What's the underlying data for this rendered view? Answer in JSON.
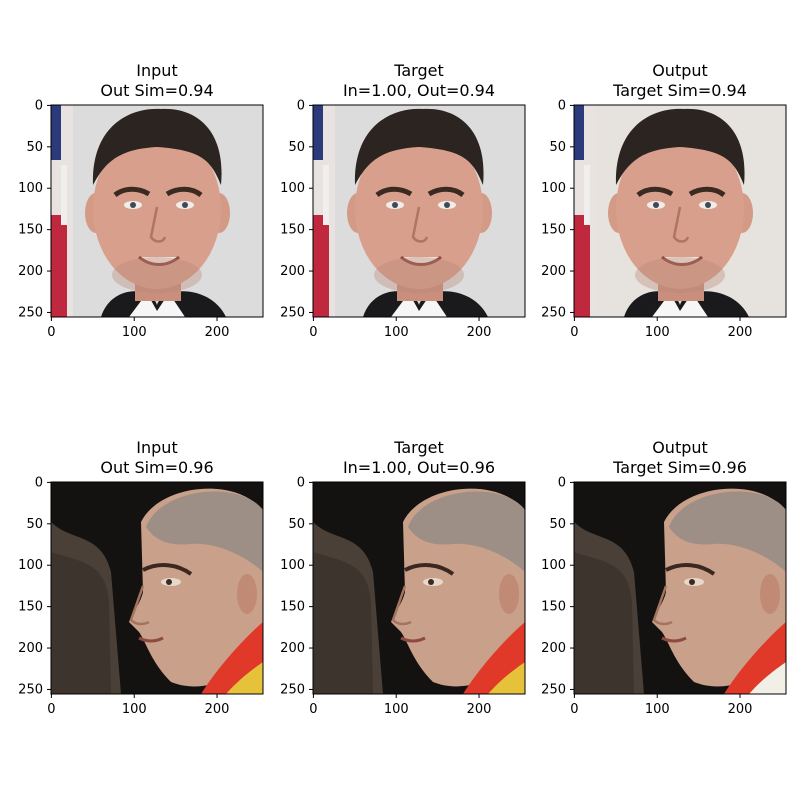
{
  "rows": [
    {
      "subject": "man",
      "panels": [
        {
          "title_line1": "Input",
          "title_line2": "Out Sim=0.94"
        },
        {
          "title_line1": "Target",
          "title_line2": "In=1.00, Out=0.94"
        },
        {
          "title_line1": "Output",
          "title_line2": "Target Sim=0.94"
        }
      ]
    },
    {
      "subject": "woman",
      "panels": [
        {
          "title_line1": "Input",
          "title_line2": "Out Sim=0.96"
        },
        {
          "title_line1": "Target",
          "title_line2": "In=1.00, Out=0.96"
        },
        {
          "title_line1": "Output",
          "title_line2": "Target Sim=0.96"
        }
      ]
    }
  ],
  "axes": {
    "x_ticks": [
      "0",
      "100",
      "200"
    ],
    "y_ticks": [
      "0",
      "50",
      "100",
      "150",
      "200",
      "250"
    ]
  }
}
